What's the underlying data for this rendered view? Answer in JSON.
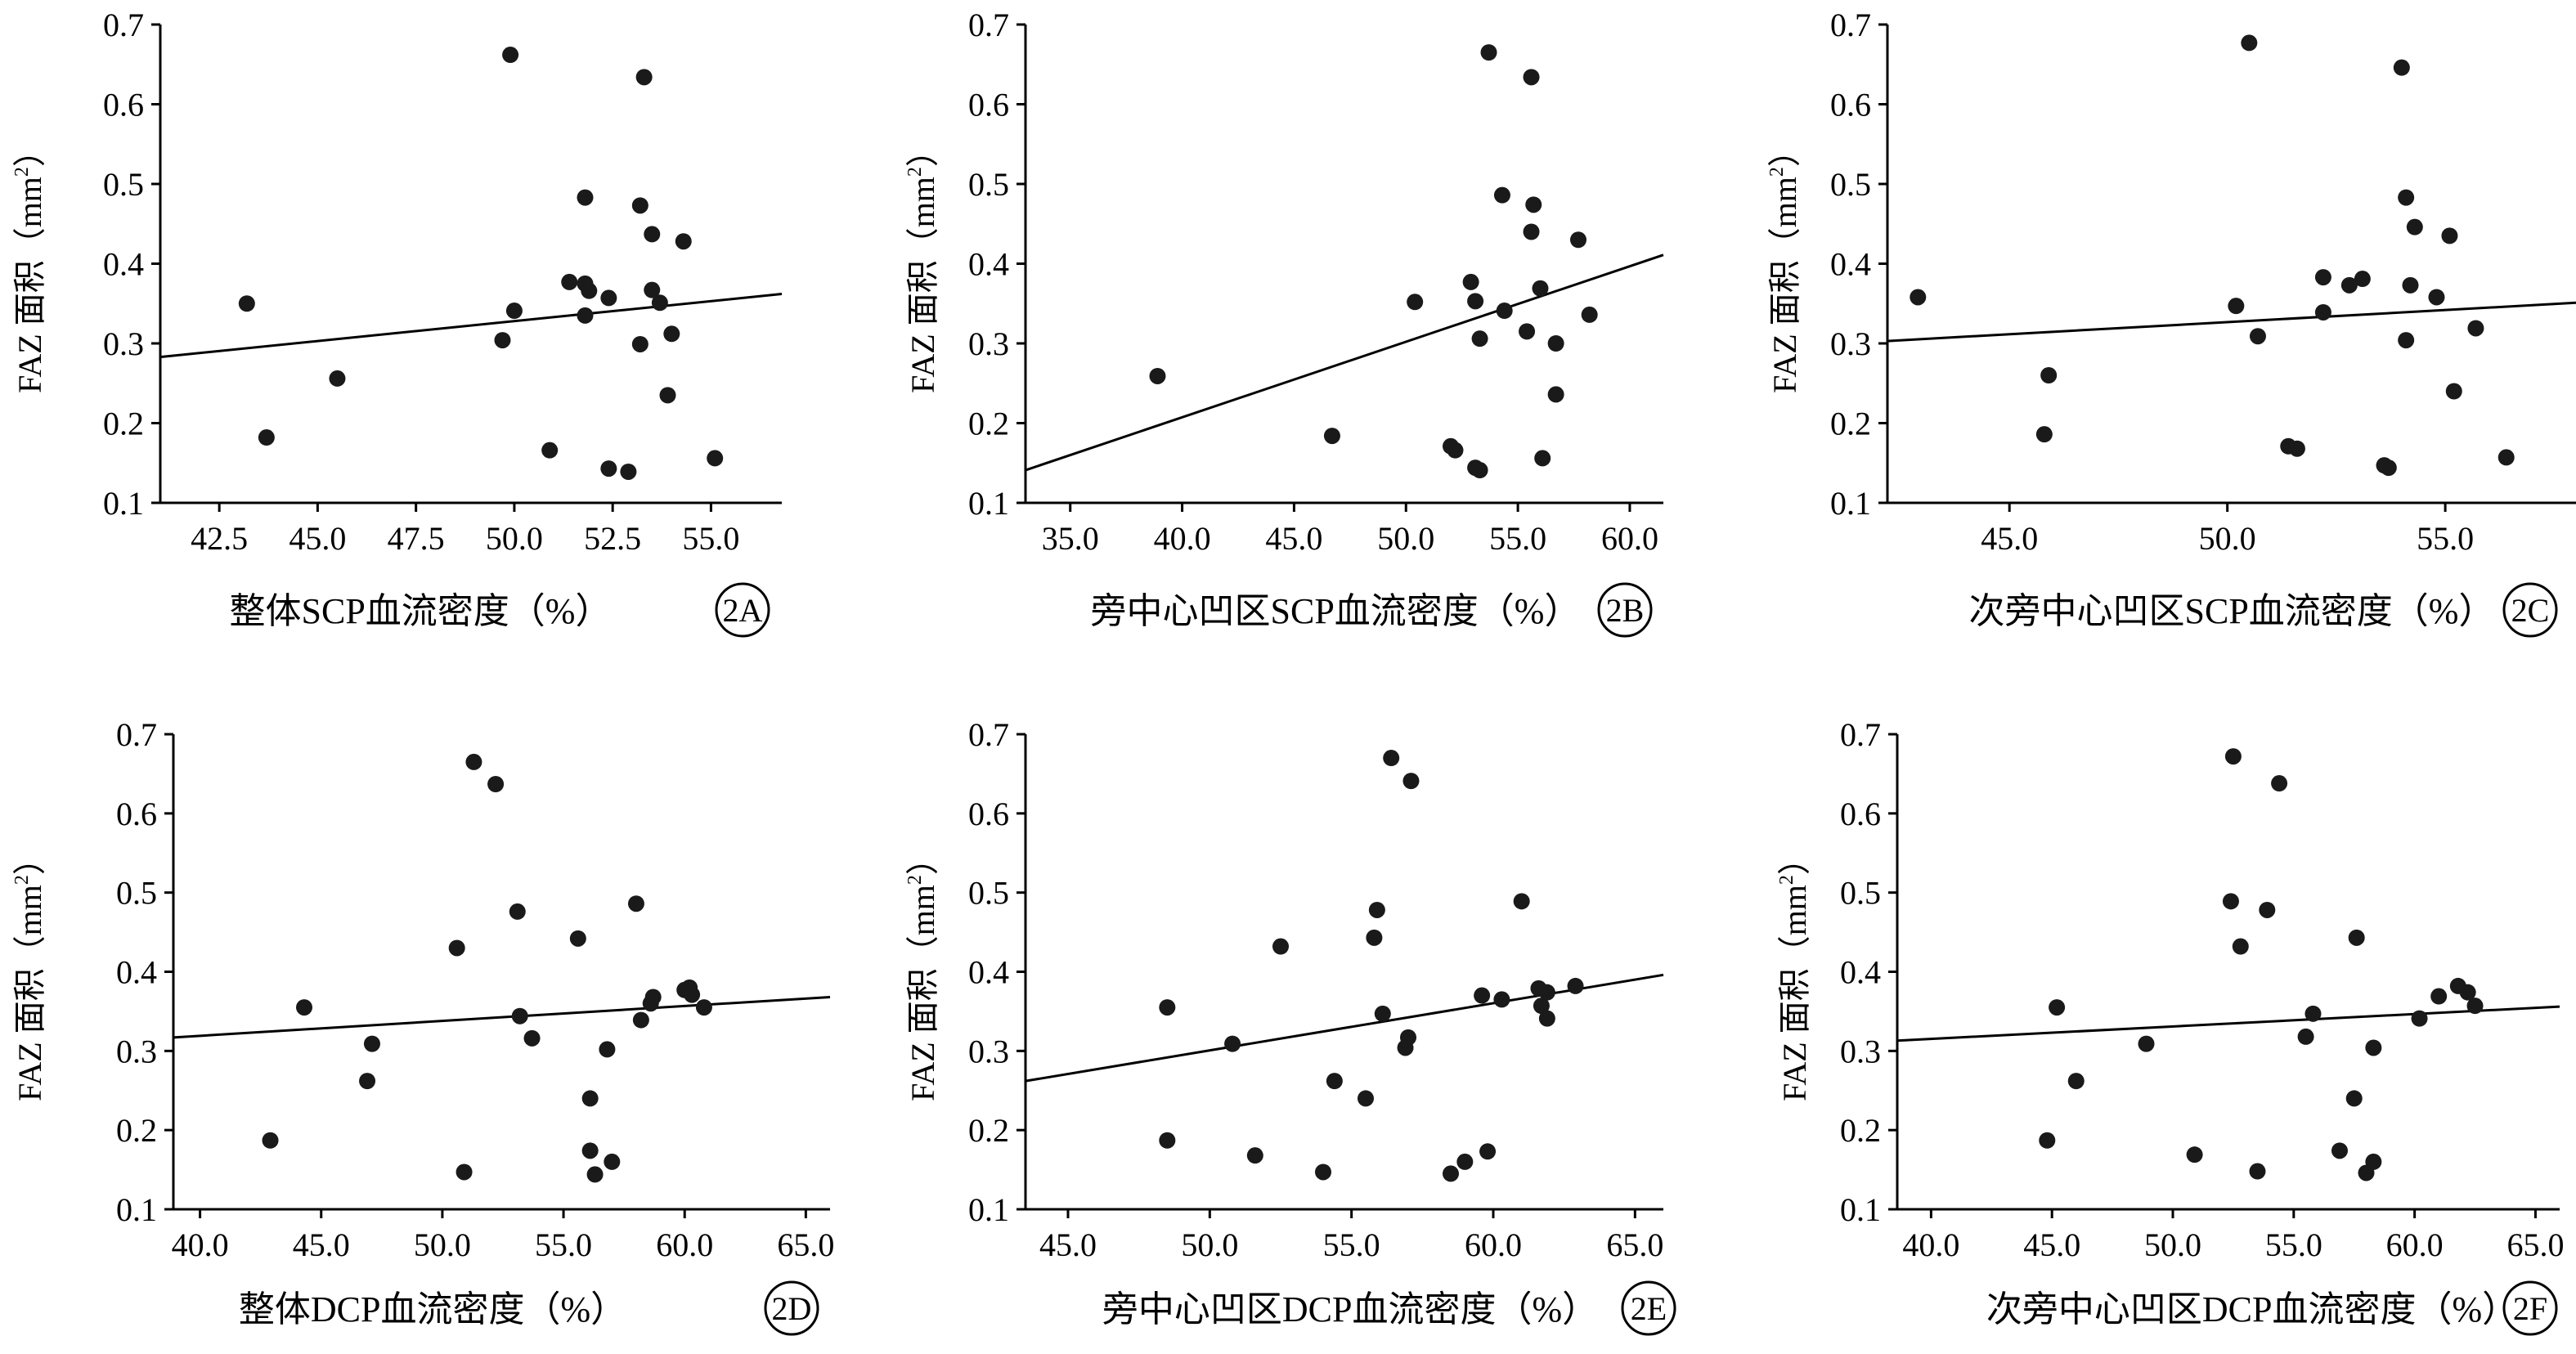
{
  "chart_data": [
    {
      "type": "scatter",
      "panel_label": "2A",
      "xlabel": "整体SCP血流密度（%）",
      "ylabel_prefix": "FAZ 面积（mm",
      "ylabel_sup": "2",
      "ylabel_suffix": "）",
      "xlim": [
        41.0,
        56.8
      ],
      "ylim": [
        0.1,
        0.7
      ],
      "x_ticks": [
        "42.5",
        "45.0",
        "47.5",
        "50.0",
        "52.5",
        "55.0"
      ],
      "y_ticks": [
        "0.1",
        "0.2",
        "0.3",
        "0.4",
        "0.5",
        "0.6",
        "0.7"
      ],
      "trendline": {
        "x": [
          41.0,
          56.8
        ],
        "y": [
          0.283,
          0.362
        ]
      },
      "points": [
        [
          43.2,
          0.35
        ],
        [
          43.7,
          0.182
        ],
        [
          45.5,
          0.256
        ],
        [
          49.9,
          0.662
        ],
        [
          50.0,
          0.341
        ],
        [
          49.7,
          0.304
        ],
        [
          50.9,
          0.166
        ],
        [
          51.4,
          0.377
        ],
        [
          51.8,
          0.483
        ],
        [
          51.8,
          0.375
        ],
        [
          51.9,
          0.366
        ],
        [
          51.8,
          0.335
        ],
        [
          52.4,
          0.357
        ],
        [
          52.4,
          0.143
        ],
        [
          52.9,
          0.139
        ],
        [
          53.2,
          0.473
        ],
        [
          53.3,
          0.634
        ],
        [
          53.5,
          0.437
        ],
        [
          53.5,
          0.367
        ],
        [
          53.7,
          0.351
        ],
        [
          53.2,
          0.299
        ],
        [
          54.0,
          0.312
        ],
        [
          53.9,
          0.235
        ],
        [
          54.3,
          0.428
        ],
        [
          55.1,
          0.156
        ]
      ]
    },
    {
      "type": "scatter",
      "panel_label": "2B",
      "xlabel": "旁中心凹区SCP血流密度（%）",
      "ylabel_prefix": "FAZ 面积（mm",
      "ylabel_sup": "2",
      "ylabel_suffix": "）",
      "xlim": [
        33.0,
        61.5
      ],
      "ylim": [
        0.1,
        0.7
      ],
      "x_ticks": [
        "35.0",
        "40.0",
        "45.0",
        "50.0",
        "55.0",
        "60.0"
      ],
      "y_ticks": [
        "0.1",
        "0.2",
        "0.3",
        "0.4",
        "0.5",
        "0.6",
        "0.7"
      ],
      "trendline": {
        "x": [
          33.0,
          61.5
        ],
        "y": [
          0.141,
          0.411
        ]
      },
      "points": [
        [
          38.9,
          0.259
        ],
        [
          46.7,
          0.184
        ],
        [
          50.4,
          0.352
        ],
        [
          52.0,
          0.171
        ],
        [
          52.2,
          0.166
        ],
        [
          52.9,
          0.377
        ],
        [
          53.1,
          0.353
        ],
        [
          53.1,
          0.144
        ],
        [
          53.3,
          0.306
        ],
        [
          53.3,
          0.141
        ],
        [
          53.7,
          0.665
        ],
        [
          54.3,
          0.486
        ],
        [
          54.4,
          0.341
        ],
        [
          55.4,
          0.315
        ],
        [
          55.6,
          0.634
        ],
        [
          55.6,
          0.44
        ],
        [
          55.7,
          0.474
        ],
        [
          56.0,
          0.369
        ],
        [
          56.1,
          0.156
        ],
        [
          56.7,
          0.3
        ],
        [
          56.7,
          0.236
        ],
        [
          57.7,
          0.43
        ],
        [
          58.2,
          0.336
        ]
      ]
    },
    {
      "type": "scatter",
      "panel_label": "2C",
      "xlabel": "次旁中心凹区SCP血流密度（%）",
      "ylabel_prefix": "FAZ 面积（mm",
      "ylabel_sup": "2",
      "ylabel_suffix": "）",
      "xlim": [
        42.2,
        58.0
      ],
      "ylim": [
        0.1,
        0.7
      ],
      "x_ticks": [
        "45.0",
        "50.0",
        "55.0"
      ],
      "y_ticks": [
        "0.1",
        "0.2",
        "0.3",
        "0.4",
        "0.5",
        "0.6",
        "0.7"
      ],
      "trendline": {
        "x": [
          42.2,
          58.0
        ],
        "y": [
          0.303,
          0.351
        ]
      },
      "points": [
        [
          42.9,
          0.358
        ],
        [
          45.8,
          0.186
        ],
        [
          45.9,
          0.26
        ],
        [
          50.2,
          0.347
        ],
        [
          50.5,
          0.677
        ],
        [
          50.7,
          0.309
        ],
        [
          51.4,
          0.171
        ],
        [
          51.6,
          0.168
        ],
        [
          52.2,
          0.383
        ],
        [
          52.2,
          0.339
        ],
        [
          52.8,
          0.373
        ],
        [
          53.1,
          0.381
        ],
        [
          53.6,
          0.147
        ],
        [
          53.7,
          0.144
        ],
        [
          54.0,
          0.646
        ],
        [
          54.1,
          0.483
        ],
        [
          54.3,
          0.446
        ],
        [
          54.2,
          0.373
        ],
        [
          54.1,
          0.304
        ],
        [
          54.8,
          0.358
        ],
        [
          55.1,
          0.435
        ],
        [
          55.2,
          0.24
        ],
        [
          55.7,
          0.319
        ],
        [
          56.4,
          0.157
        ]
      ]
    },
    {
      "type": "scatter",
      "panel_label": "2D",
      "xlabel": "整体DCP血流密度（%）",
      "ylabel_prefix": "FAZ 面积（mm",
      "ylabel_sup": "2",
      "ylabel_suffix": "）",
      "xlim": [
        38.9,
        66.0
      ],
      "ylim": [
        0.1,
        0.7
      ],
      "x_ticks": [
        "40.0",
        "45.0",
        "50.0",
        "55.0",
        "60.0",
        "65.0"
      ],
      "y_ticks": [
        "0.1",
        "0.2",
        "0.3",
        "0.4",
        "0.5",
        "0.6",
        "0.7"
      ],
      "trendline": {
        "x": [
          38.9,
          66.0
        ],
        "y": [
          0.317,
          0.368
        ]
      },
      "points": [
        [
          42.9,
          0.187
        ],
        [
          44.3,
          0.355
        ],
        [
          46.9,
          0.262
        ],
        [
          47.1,
          0.309
        ],
        [
          50.6,
          0.43
        ],
        [
          50.9,
          0.147
        ],
        [
          51.3,
          0.665
        ],
        [
          52.2,
          0.637
        ],
        [
          53.1,
          0.476
        ],
        [
          53.2,
          0.344
        ],
        [
          53.7,
          0.316
        ],
        [
          55.6,
          0.442
        ],
        [
          56.1,
          0.24
        ],
        [
          56.1,
          0.174
        ],
        [
          56.3,
          0.144
        ],
        [
          56.8,
          0.302
        ],
        [
          57.0,
          0.16
        ],
        [
          58.0,
          0.486
        ],
        [
          58.2,
          0.339
        ],
        [
          58.6,
          0.36
        ],
        [
          58.7,
          0.368
        ],
        [
          60.0,
          0.377
        ],
        [
          60.2,
          0.38
        ],
        [
          60.3,
          0.371
        ],
        [
          60.8,
          0.355
        ]
      ]
    },
    {
      "type": "scatter",
      "panel_label": "2E",
      "xlabel": "旁中心凹区DCP血流密度（%）",
      "ylabel_prefix": "FAZ 面积（mm",
      "ylabel_sup": "2",
      "ylabel_suffix": "）",
      "xlim": [
        43.5,
        66.0
      ],
      "ylim": [
        0.1,
        0.7
      ],
      "x_ticks": [
        "45.0",
        "50.0",
        "55.0",
        "60.0",
        "65.0"
      ],
      "y_ticks": [
        "0.1",
        "0.2",
        "0.3",
        "0.4",
        "0.5",
        "0.6",
        "0.7"
      ],
      "trendline": {
        "x": [
          43.5,
          66.0
        ],
        "y": [
          0.262,
          0.396
        ]
      },
      "points": [
        [
          48.5,
          0.355
        ],
        [
          48.5,
          0.187
        ],
        [
          50.8,
          0.309
        ],
        [
          51.6,
          0.168
        ],
        [
          52.5,
          0.432
        ],
        [
          54.0,
          0.147
        ],
        [
          54.4,
          0.262
        ],
        [
          55.5,
          0.24
        ],
        [
          55.8,
          0.443
        ],
        [
          55.9,
          0.478
        ],
        [
          56.1,
          0.347
        ],
        [
          56.4,
          0.67
        ],
        [
          56.9,
          0.304
        ],
        [
          57.0,
          0.317
        ],
        [
          57.1,
          0.641
        ],
        [
          58.5,
          0.145
        ],
        [
          59.0,
          0.16
        ],
        [
          59.6,
          0.37
        ],
        [
          59.8,
          0.173
        ],
        [
          60.3,
          0.365
        ],
        [
          61.0,
          0.489
        ],
        [
          61.6,
          0.379
        ],
        [
          61.7,
          0.357
        ],
        [
          61.9,
          0.341
        ],
        [
          61.9,
          0.374
        ],
        [
          62.9,
          0.382
        ]
      ]
    },
    {
      "type": "scatter",
      "panel_label": "2F",
      "xlabel": "次旁中心凹区DCP血流密度（%）",
      "ylabel_prefix": "FAZ 面积（mm",
      "ylabel_sup": "2",
      "ylabel_suffix": "）",
      "xlim": [
        38.6,
        66.0
      ],
      "ylim": [
        0.1,
        0.7
      ],
      "x_ticks": [
        "40.0",
        "45.0",
        "50.0",
        "55.0",
        "60.0",
        "65.0"
      ],
      "y_ticks": [
        "0.1",
        "0.2",
        "0.3",
        "0.4",
        "0.5",
        "0.6",
        "0.7"
      ],
      "trendline": {
        "x": [
          38.6,
          66.0
        ],
        "y": [
          0.313,
          0.356
        ]
      },
      "points": [
        [
          44.8,
          0.187
        ],
        [
          45.2,
          0.355
        ],
        [
          46.0,
          0.262
        ],
        [
          48.9,
          0.309
        ],
        [
          50.9,
          0.169
        ],
        [
          52.4,
          0.489
        ],
        [
          52.5,
          0.672
        ],
        [
          52.8,
          0.432
        ],
        [
          53.5,
          0.148
        ],
        [
          53.9,
          0.478
        ],
        [
          54.4,
          0.638
        ],
        [
          55.5,
          0.318
        ],
        [
          55.8,
          0.347
        ],
        [
          56.9,
          0.174
        ],
        [
          57.5,
          0.24
        ],
        [
          57.6,
          0.443
        ],
        [
          58.0,
          0.146
        ],
        [
          58.3,
          0.304
        ],
        [
          58.3,
          0.16
        ],
        [
          60.2,
          0.341
        ],
        [
          61.0,
          0.369
        ],
        [
          61.8,
          0.382
        ],
        [
          62.2,
          0.374
        ],
        [
          62.5,
          0.357
        ]
      ]
    }
  ]
}
